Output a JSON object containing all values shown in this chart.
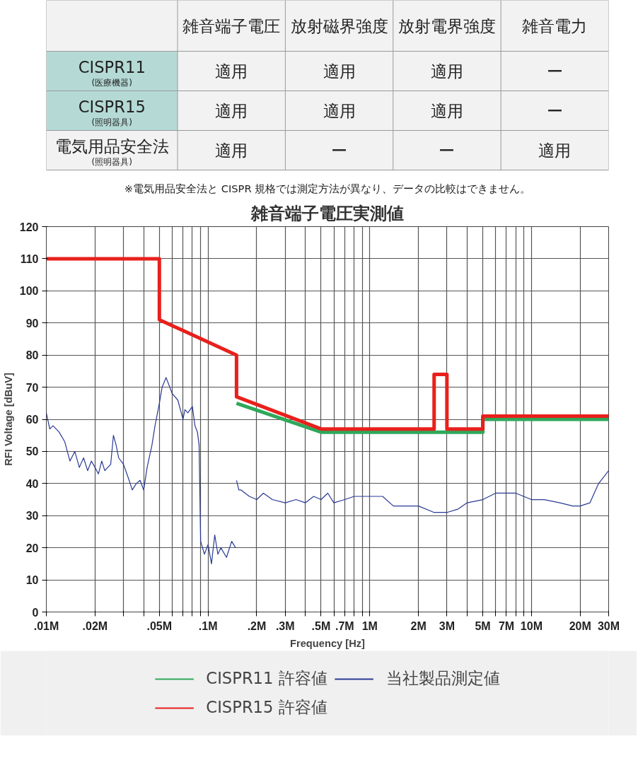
{
  "chart_data": [
    {
      "type": "other",
      "categories": [
        "雑音端子電圧",
        "放射磁界強度",
        "放射電界強度",
        "雑音電力"
      ],
      "y_categories": [
        "CISPR11\n(医療機器)",
        "CISPR15\n(照明器具)",
        "電気用品安全法\n(照明器具)"
      ],
      "cell_labels": [
        [
          "適用",
          "適用",
          "適用",
          "ー"
        ],
        [
          "適用",
          "適用",
          "適用",
          "ー"
        ],
        [
          "適用",
          "ー",
          "ー",
          "適用"
        ]
      ],
      "colors": [
        "#f2f2f2",
        "#b5dad5",
        "#b5dad5",
        "#f2f2f2"
      ],
      "annotations": [
        "※電気用品安全法と CISPR 規格では測定方法が異なり、データの比較はできません。"
      ]
    },
    {
      "type": "line",
      "title": "雑音端子電圧実測値",
      "xlabel": "Frequency [Hz]",
      "ylabel": "RFI Voltage [dBuV]",
      "log": "x",
      "grid": true,
      "legend": "bottom",
      "xlim": [
        0.01,
        30
      ],
      "ylim": [
        0,
        120
      ],
      "xticks": [
        {
          "value": 0.01,
          "label": ".01M"
        },
        {
          "value": 0.02,
          "label": ".02M"
        },
        {
          "value": 0.03,
          "label": null
        },
        {
          "value": 0.04,
          "label": null
        },
        {
          "value": 0.05,
          "label": ".05M"
        },
        {
          "value": 0.06,
          "label": null
        },
        {
          "value": 0.07,
          "label": null
        },
        {
          "value": 0.08,
          "label": null
        },
        {
          "value": 0.09,
          "label": null
        },
        {
          "value": 0.1,
          "label": ".1M"
        },
        {
          "value": 0.2,
          "label": ".2M"
        },
        {
          "value": 0.3,
          "label": ".3M"
        },
        {
          "value": 0.4,
          "label": null
        },
        {
          "value": 0.5,
          "label": ".5M"
        },
        {
          "value": 0.6,
          "label": null
        },
        {
          "value": 0.7,
          "label": ".7M"
        },
        {
          "value": 0.8,
          "label": null
        },
        {
          "value": 0.9,
          "label": null
        },
        {
          "value": 1,
          "label": "1M"
        },
        {
          "value": 2,
          "label": "2M"
        },
        {
          "value": 3,
          "label": "3M"
        },
        {
          "value": 4,
          "label": null
        },
        {
          "value": 5,
          "label": "5M"
        },
        {
          "value": 6,
          "label": null
        },
        {
          "value": 7,
          "label": "7M"
        },
        {
          "value": 8,
          "label": null
        },
        {
          "value": 9,
          "label": null
        },
        {
          "value": 10,
          "label": "10M"
        },
        {
          "value": 20,
          "label": "20M"
        },
        {
          "value": 30,
          "label": "30M"
        }
      ],
      "yticks": [
        0,
        10,
        20,
        30,
        40,
        50,
        60,
        70,
        80,
        90,
        100,
        110,
        120
      ],
      "series": [
        {
          "name": "CISPR11 許容値",
          "color": "#2ea85a",
          "x": [
            0.15,
            0.5,
            5,
            5,
            30
          ],
          "values": [
            65,
            56,
            56,
            60,
            60
          ]
        },
        {
          "name": "CISPR15 許容値",
          "color": "#e8201c",
          "x": [
            0.01,
            0.05,
            0.05,
            0.15,
            0.15,
            0.5,
            2.5,
            2.5,
            3,
            3,
            5,
            5,
            30
          ],
          "values": [
            110,
            110,
            91,
            80,
            67,
            57,
            57,
            74,
            74,
            57,
            57,
            61,
            61
          ]
        },
        {
          "name": "当社製品測定値",
          "color": "#2a3a93",
          "x": [
            0.01,
            0.0105,
            0.011,
            0.012,
            0.013,
            0.014,
            0.015,
            0.016,
            0.017,
            0.018,
            0.019,
            0.02,
            0.021,
            0.022,
            0.023,
            0.025,
            0.026,
            0.027,
            0.028,
            0.03,
            0.032,
            0.034,
            0.036,
            0.038,
            0.04,
            0.042,
            0.045,
            0.047,
            0.05,
            0.052,
            0.055,
            0.058,
            0.06,
            0.065,
            0.07,
            0.072,
            0.075,
            0.08,
            0.083,
            0.086,
            0.088,
            0.09,
            0.095,
            0.1,
            0.105,
            0.11,
            0.115,
            0.12,
            0.13,
            0.14,
            0.148,
            0.149,
            0.15,
            0.155,
            0.16,
            0.18,
            0.2,
            0.22,
            0.25,
            0.3,
            0.35,
            0.4,
            0.45,
            0.5,
            0.55,
            0.6,
            0.7,
            0.8,
            1,
            1.2,
            1.4,
            1.6,
            2,
            2.5,
            3,
            3.5,
            4,
            5,
            6,
            7,
            8,
            10,
            12,
            15,
            18,
            20,
            23,
            26,
            30
          ],
          "values": [
            62,
            57,
            58,
            56,
            53,
            47,
            50,
            45,
            48,
            44,
            47,
            45,
            43,
            47,
            44,
            46,
            55,
            52,
            48,
            46,
            42,
            38,
            40,
            41,
            38,
            45,
            52,
            58,
            65,
            70,
            73,
            70,
            68,
            66,
            60,
            63,
            62,
            64,
            58,
            56,
            52,
            22,
            18,
            21,
            15,
            24,
            18,
            20,
            17,
            22,
            20,
            null,
            41,
            38,
            38,
            36,
            35,
            37,
            35,
            34,
            35,
            34,
            36,
            35,
            37,
            34,
            35,
            36,
            36,
            36,
            33,
            33,
            33,
            31,
            31,
            32,
            34,
            35,
            37,
            37,
            37,
            35,
            35,
            34,
            33,
            33,
            34,
            40,
            44
          ]
        }
      ]
    }
  ]
}
